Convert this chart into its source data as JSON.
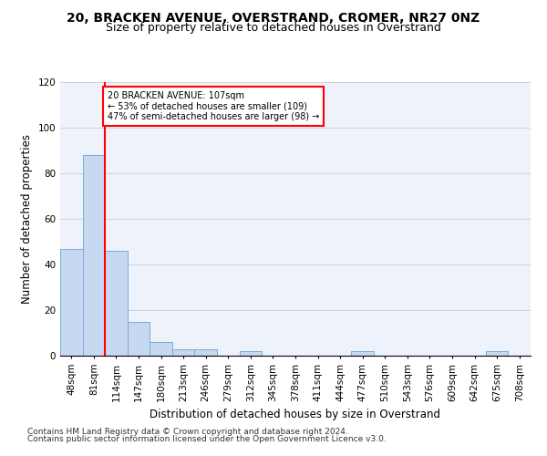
{
  "title1": "20, BRACKEN AVENUE, OVERSTRAND, CROMER, NR27 0NZ",
  "title2": "Size of property relative to detached houses in Overstrand",
  "xlabel": "Distribution of detached houses by size in Overstrand",
  "ylabel": "Number of detached properties",
  "bar_labels": [
    "48sqm",
    "81sqm",
    "114sqm",
    "147sqm",
    "180sqm",
    "213sqm",
    "246sqm",
    "279sqm",
    "312sqm",
    "345sqm",
    "378sqm",
    "411sqm",
    "444sqm",
    "477sqm",
    "510sqm",
    "543sqm",
    "576sqm",
    "609sqm",
    "642sqm",
    "675sqm",
    "708sqm"
  ],
  "bar_values": [
    47,
    88,
    46,
    15,
    6,
    3,
    3,
    0,
    2,
    0,
    0,
    0,
    0,
    2,
    0,
    0,
    0,
    0,
    0,
    2,
    0
  ],
  "bar_color": "#c6d9f0",
  "bar_edge_color": "#7aabda",
  "property_line_x": 1.5,
  "annotation_text_line1": "20 BRACKEN AVENUE: 107sqm",
  "annotation_text_line2": "← 53% of detached houses are smaller (109)",
  "annotation_text_line3": "47% of semi-detached houses are larger (98) →",
  "annotation_box_color": "white",
  "annotation_box_edge_color": "red",
  "vline_color": "red",
  "ylim": [
    0,
    120
  ],
  "yticks": [
    0,
    20,
    40,
    60,
    80,
    100,
    120
  ],
  "footer1": "Contains HM Land Registry data © Crown copyright and database right 2024.",
  "footer2": "Contains public sector information licensed under the Open Government Licence v3.0.",
  "grid_color": "#cccccc",
  "bg_color": "#eef3fb",
  "title1_fontsize": 10,
  "title2_fontsize": 9,
  "axis_label_fontsize": 8.5,
  "tick_fontsize": 7.5,
  "footer_fontsize": 6.5
}
